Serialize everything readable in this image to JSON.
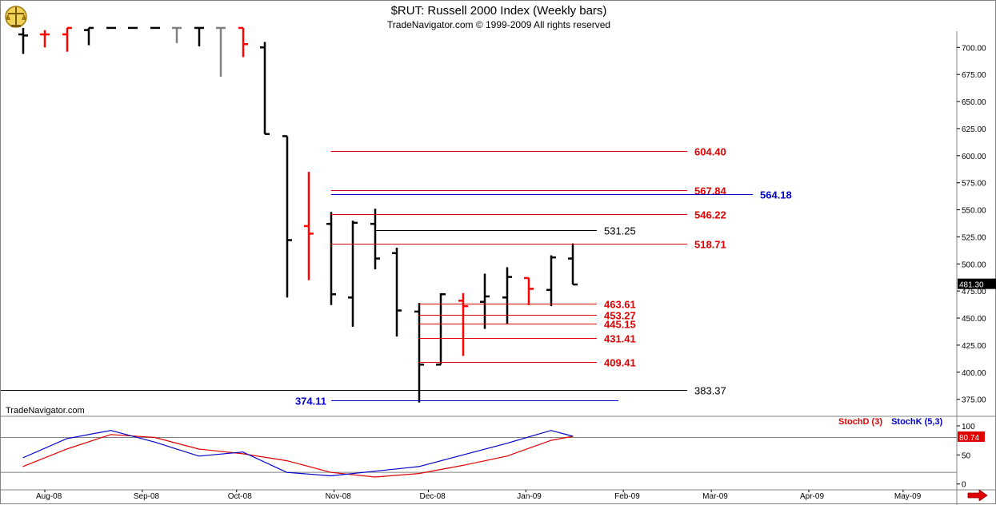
{
  "header": {
    "title": "$RUT:  Russell 2000 Index  (Weekly bars)",
    "subtitle": "TradeNavigator.com © 1999-2009 All rights reserved"
  },
  "watermark": "TradeNavigator.com",
  "colors": {
    "up_bar": "#000000",
    "down_bar": "#ff0000",
    "fib_line": "#e00000",
    "fib_label": "#e00000",
    "level_black": "#000000",
    "level_blue": "#0000cc",
    "stoch_d": "#e00000",
    "stoch_k": "#0000cc"
  },
  "chart_data": [
    {
      "type": "ohlc",
      "title": "$RUT:  Russell 2000 Index  (Weekly bars)",
      "ylim": [
        360,
        715
      ],
      "y_ticks": [
        "700.00",
        "675.00",
        "650.00",
        "625.00",
        "600.00",
        "575.00",
        "550.00",
        "525.00",
        "500.00",
        "475.00",
        "450.00",
        "425.00",
        "400.00",
        "375.00"
      ],
      "last_price": "481.30",
      "x_labels": [
        "Aug-08",
        "Sep-08",
        "Oct-08",
        "Nov-08",
        "Dec-08",
        "Jan-09",
        "Feb-09",
        "Mar-09",
        "Apr-09",
        "May-09"
      ],
      "bars": [
        {
          "date": "2008-07-25",
          "o": 712,
          "h": 718,
          "l": 694,
          "c": 711,
          "color": "black"
        },
        {
          "date": "2008-08-01",
          "o": 712,
          "h": 716,
          "l": 700,
          "c": 712,
          "color": "red"
        },
        {
          "date": "2008-08-08",
          "o": 712,
          "h": 718,
          "l": 696,
          "c": 718,
          "color": "red"
        },
        {
          "date": "2008-08-15",
          "o": 716,
          "h": 718,
          "l": 702,
          "c": 718,
          "color": "black"
        },
        {
          "date": "2008-08-22",
          "o": 718,
          "h": 718,
          "l": 718,
          "c": 718,
          "color": "black"
        },
        {
          "date": "2008-08-29",
          "o": 718,
          "h": 718,
          "l": 718,
          "c": 718,
          "color": "black"
        },
        {
          "date": "2008-09-05",
          "o": 718,
          "h": 718,
          "l": 718,
          "c": 718,
          "color": "black"
        },
        {
          "date": "2008-09-12",
          "o": 718,
          "h": 718,
          "l": 704,
          "c": 718,
          "color": "gray"
        },
        {
          "date": "2008-09-19",
          "o": 718,
          "h": 718,
          "l": 701,
          "c": 718,
          "color": "black"
        },
        {
          "date": "2008-09-26",
          "o": 718,
          "h": 718,
          "l": 673,
          "c": 718,
          "color": "gray"
        },
        {
          "date": "2008-10-03",
          "o": 718,
          "h": 718,
          "l": 691,
          "c": 703,
          "color": "red"
        },
        {
          "date": "2008-10-10",
          "o": 700,
          "h": 705,
          "l": 620,
          "c": 620,
          "color": "black"
        },
        {
          "date": "2008-10-17",
          "o": 618,
          "h": 618,
          "l": 469,
          "c": 522,
          "color": "black"
        },
        {
          "date": "2008-10-24",
          "o": 535,
          "h": 585,
          "l": 485,
          "c": 528,
          "color": "red"
        },
        {
          "date": "2008-10-31",
          "o": 537,
          "h": 548,
          "l": 462,
          "c": 472,
          "color": "black"
        },
        {
          "date": "2008-11-07",
          "o": 469,
          "h": 540,
          "l": 442,
          "c": 538,
          "color": "black"
        },
        {
          "date": "2008-11-14",
          "o": 537,
          "h": 551,
          "l": 495,
          "c": 505,
          "color": "black"
        },
        {
          "date": "2008-11-21",
          "o": 510,
          "h": 515,
          "l": 433,
          "c": 457,
          "color": "black"
        },
        {
          "date": "2008-11-28",
          "o": 456,
          "h": 464,
          "l": 372,
          "c": 407,
          "color": "black"
        },
        {
          "date": "2008-12-05",
          "o": 407,
          "h": 473,
          "l": 407,
          "c": 472,
          "color": "black"
        },
        {
          "date": "2008-12-12",
          "o": 466,
          "h": 473,
          "l": 415,
          "c": 461,
          "color": "red"
        },
        {
          "date": "2008-12-19",
          "o": 465,
          "h": 491,
          "l": 440,
          "c": 470,
          "color": "black"
        },
        {
          "date": "2008-12-26",
          "o": 469,
          "h": 497,
          "l": 445,
          "c": 488,
          "color": "black"
        },
        {
          "date": "2009-01-02",
          "o": 487,
          "h": 487,
          "l": 462,
          "c": 477,
          "color": "red"
        },
        {
          "date": "2009-01-09",
          "o": 476,
          "h": 508,
          "l": 461,
          "c": 506,
          "color": "black"
        },
        {
          "date": "2009-01-16",
          "o": 505,
          "h": 519,
          "l": 481,
          "c": 481,
          "color": "black"
        }
      ],
      "levels": [
        {
          "value": 604.4,
          "label": "604.40",
          "color": "red",
          "x_start": "2008-10-31"
        },
        {
          "value": 567.84,
          "label": "567.84",
          "color": "red",
          "x_start": "2008-10-31"
        },
        {
          "value": 564.18,
          "label": "564.18",
          "color": "blue",
          "x_start": "2008-10-31"
        },
        {
          "value": 546.22,
          "label": "546.22",
          "color": "red",
          "x_start": "2008-10-31"
        },
        {
          "value": 531.25,
          "label": "531.25",
          "color": "black",
          "x_start": "2008-11-14"
        },
        {
          "value": 518.71,
          "label": "518.71",
          "color": "red",
          "x_start": "2008-10-31"
        },
        {
          "value": 463.61,
          "label": "463.61",
          "color": "red",
          "x_start": "2008-11-28"
        },
        {
          "value": 453.27,
          "label": "453.27",
          "color": "red",
          "x_start": "2008-11-28"
        },
        {
          "value": 445.15,
          "label": "445.15",
          "color": "red",
          "x_start": "2008-11-28"
        },
        {
          "value": 431.41,
          "label": "431.41",
          "color": "red",
          "x_start": "2008-11-28"
        },
        {
          "value": 409.41,
          "label": "409.41",
          "color": "red",
          "x_start": "2008-11-28"
        },
        {
          "value": 383.37,
          "label": "383.37",
          "color": "black",
          "x_start": "2008-07-18"
        },
        {
          "value": 374.11,
          "label": "374.11",
          "color": "blue",
          "x_start": "2008-10-31"
        }
      ]
    },
    {
      "type": "line",
      "legend": [
        "StochD (3)",
        "StochK (5,3)"
      ],
      "ylim": [
        -10,
        115
      ],
      "y_ticks": [
        "100",
        "50",
        "0"
      ],
      "last_value": "80.74",
      "series": [
        {
          "name": "StochD (3)",
          "color": "red",
          "x": [
            "2008-07-25",
            "2008-08-08",
            "2008-08-22",
            "2008-09-05",
            "2008-09-19",
            "2008-10-03",
            "2008-10-17",
            "2008-10-31",
            "2008-11-14",
            "2008-11-28",
            "2008-12-12",
            "2008-12-26",
            "2009-01-09",
            "2009-01-16"
          ],
          "values": [
            30,
            60,
            85,
            80,
            60,
            52,
            40,
            20,
            12,
            18,
            32,
            48,
            75,
            82
          ]
        },
        {
          "name": "StochK (5,3)",
          "color": "blue",
          "x": [
            "2008-07-25",
            "2008-08-08",
            "2008-08-22",
            "2008-09-05",
            "2008-09-19",
            "2008-10-03",
            "2008-10-17",
            "2008-10-31",
            "2008-11-14",
            "2008-11-28",
            "2008-12-12",
            "2008-12-26",
            "2009-01-09",
            "2009-01-16"
          ],
          "values": [
            45,
            78,
            92,
            72,
            48,
            55,
            20,
            14,
            22,
            30,
            50,
            70,
            92,
            82
          ]
        }
      ]
    }
  ]
}
